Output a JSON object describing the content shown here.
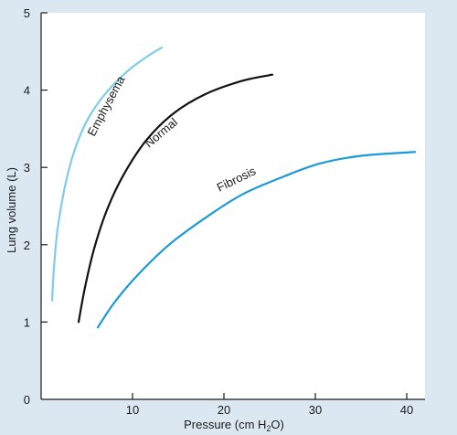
{
  "chart_data": {
    "type": "line",
    "title": "",
    "xlabel": "Pressure (cm H",
    "xlabel_sub": "2",
    "xlabel_tail": "O)",
    "ylabel": "Lung volume (L)",
    "xlim": [
      0,
      42
    ],
    "ylim": [
      0,
      5
    ],
    "xticks": [
      10,
      20,
      30,
      40
    ],
    "yticks": [
      0,
      1,
      2,
      3,
      4,
      5
    ],
    "grid": false,
    "series": [
      {
        "name": "Emphysema",
        "color": "#7ecbea",
        "points": [
          [
            1.2,
            1.28
          ],
          [
            1.4,
            1.7
          ],
          [
            1.8,
            2.2
          ],
          [
            2.6,
            2.75
          ],
          [
            3.6,
            3.2
          ],
          [
            5.0,
            3.6
          ],
          [
            7.0,
            3.95
          ],
          [
            9.5,
            4.25
          ],
          [
            11.8,
            4.45
          ],
          [
            13.2,
            4.55
          ]
        ]
      },
      {
        "name": "Normal",
        "color": "#111111",
        "points": [
          [
            4.1,
            1.0
          ],
          [
            4.8,
            1.45
          ],
          [
            5.8,
            1.95
          ],
          [
            7.2,
            2.45
          ],
          [
            9.0,
            2.9
          ],
          [
            11.5,
            3.35
          ],
          [
            14.5,
            3.7
          ],
          [
            18.0,
            3.95
          ],
          [
            22.0,
            4.12
          ],
          [
            25.3,
            4.2
          ]
        ]
      },
      {
        "name": "Fibrosis",
        "color": "#1a9ad6",
        "points": [
          [
            6.2,
            0.93
          ],
          [
            8.0,
            1.25
          ],
          [
            10.5,
            1.6
          ],
          [
            14.0,
            2.0
          ],
          [
            18.0,
            2.35
          ],
          [
            22.0,
            2.65
          ],
          [
            26.5,
            2.88
          ],
          [
            30.5,
            3.05
          ],
          [
            35.0,
            3.15
          ],
          [
            40.9,
            3.2
          ]
        ]
      }
    ],
    "labels": [
      "Emphysema",
      "Normal",
      "Fibrosis"
    ]
  }
}
